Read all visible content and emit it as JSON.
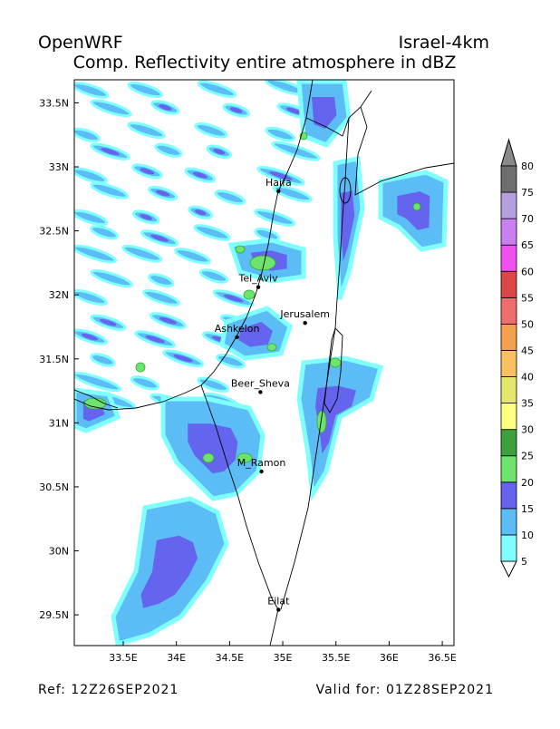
{
  "header": {
    "left": "OpenWRF",
    "right": "Israel-4km",
    "title": "Comp. Reflectivity entire atmosphere in dBZ"
  },
  "map": {
    "xlim": [
      33.04,
      36.61
    ],
    "ylim": [
      29.26,
      33.68
    ],
    "xticks": [
      {
        "value": 33.5,
        "label": "33.5E"
      },
      {
        "value": 34,
        "label": "34E"
      },
      {
        "value": 34.5,
        "label": "34.5E"
      },
      {
        "value": 35,
        "label": "35E"
      },
      {
        "value": 35.5,
        "label": "35.5E"
      },
      {
        "value": 36,
        "label": "36E"
      },
      {
        "value": 36.5,
        "label": "36.5E"
      }
    ],
    "yticks": [
      {
        "value": 33.5,
        "label": "33.5N"
      },
      {
        "value": 33,
        "label": "33N"
      },
      {
        "value": 32.5,
        "label": "32.5N"
      },
      {
        "value": 32,
        "label": "32N"
      },
      {
        "value": 31.5,
        "label": "31.5N"
      },
      {
        "value": 31,
        "label": "31N"
      },
      {
        "value": 30.5,
        "label": "30.5N"
      },
      {
        "value": 30,
        "label": "30N"
      },
      {
        "value": 29.5,
        "label": "29.5N"
      }
    ],
    "cities": [
      {
        "name": "Haifa",
        "lon": 34.96,
        "lat": 32.81
      },
      {
        "name": "Tel_Aviv",
        "lon": 34.77,
        "lat": 32.06
      },
      {
        "name": "Ashkelon",
        "lon": 34.57,
        "lat": 31.67
      },
      {
        "name": "Jerusalem",
        "lon": 35.21,
        "lat": 31.78
      },
      {
        "name": "Beer_Sheva",
        "lon": 34.79,
        "lat": 31.24
      },
      {
        "name": "M_Ramon",
        "lon": 34.8,
        "lat": 30.62
      },
      {
        "name": "Eilat",
        "lon": 34.96,
        "lat": 29.54
      }
    ]
  },
  "colorbar": {
    "levels": [
      5,
      10,
      15,
      20,
      25,
      30,
      35,
      40,
      45,
      50,
      55,
      60,
      65,
      70,
      75,
      80
    ],
    "under_color": "#ffffff",
    "over_color": "#888888",
    "colors": [
      "#80ffff",
      "#5cbcf6",
      "#6464ee",
      "#6ee46e",
      "#3ca03c",
      "#ffff80",
      "#e6e66e",
      "#f8c060",
      "#f4a050",
      "#ee6e6e",
      "#dc4646",
      "#f050f0",
      "#c880f0",
      "#b4a0dc",
      "#6e6e6e"
    ]
  },
  "footer": {
    "ref": "Ref: 12Z26SEP2021",
    "valid": "Valid for: 01Z28SEP2021"
  }
}
